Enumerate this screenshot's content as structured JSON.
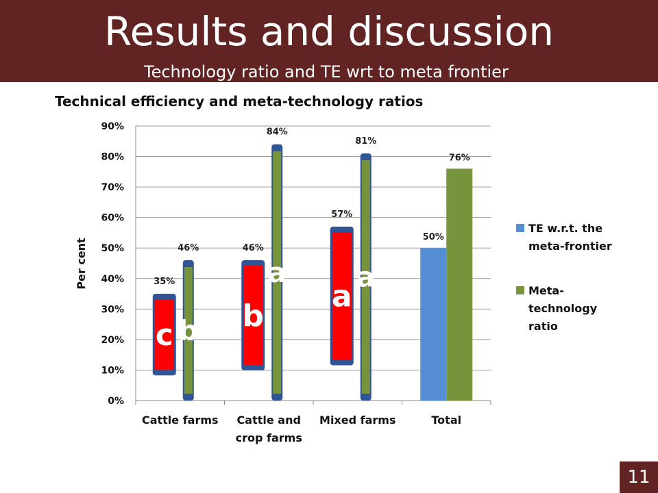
{
  "slide": {
    "title": "Results and discussion",
    "subtitle": "Technology ratio and TE wrt to meta frontier",
    "page_number": "11"
  },
  "colors": {
    "header": "#622423",
    "te_series": "#558ED5",
    "meta_series": "#77933C",
    "bar_red": "#FF0000",
    "bar_cap_blue": "#2F5597"
  },
  "chart_data": {
    "type": "bar",
    "title": "Technical efficiency and meta-technology ratios",
    "ylabel": "Per cent",
    "xlabel": "",
    "ylim": [
      0,
      90
    ],
    "yticks": [
      "0%",
      "10%",
      "20%",
      "30%",
      "40%",
      "50%",
      "60%",
      "70%",
      "80%",
      "90%"
    ],
    "grid": true,
    "legend_position": "right",
    "categories": [
      [
        "Cattle farms"
      ],
      [
        "Cattle and",
        "crop farms"
      ],
      [
        "Mixed farms"
      ],
      [
        "Total"
      ]
    ],
    "series": [
      {
        "name": "TE w.r.t. the meta-frontier",
        "values": [
          35,
          46,
          57,
          50
        ],
        "labels": [
          "35%",
          "46%",
          "57%",
          "50%"
        ],
        "letters": [
          "c",
          "b",
          "a",
          ""
        ]
      },
      {
        "name": "Meta-technology ratio",
        "values": [
          46,
          84,
          81,
          76
        ],
        "labels": [
          "46%",
          "84%",
          "81%",
          "76%"
        ],
        "letters": [
          "b",
          "a",
          "a",
          ""
        ]
      }
    ],
    "legend": [
      {
        "lines": [
          "TE w.r.t. the",
          "meta-frontier"
        ]
      },
      {
        "lines": [
          "Meta-",
          "technology",
          "ratio"
        ]
      }
    ]
  }
}
